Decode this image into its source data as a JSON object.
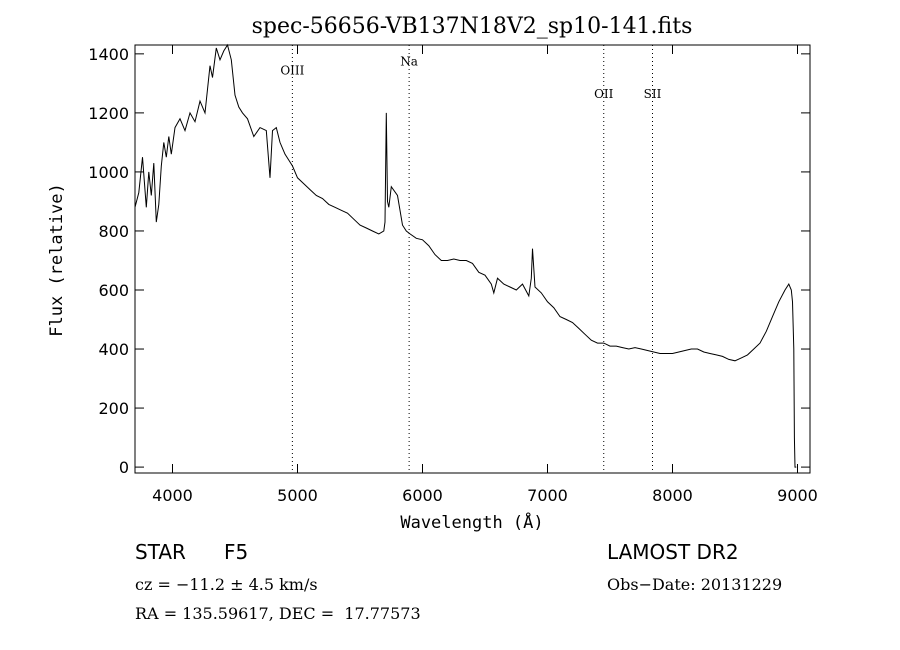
{
  "chart_data": {
    "type": "line",
    "title": "spec-56656-VB137N18V2_sp10-141.fits",
    "xlabel": "Wavelength (Å)",
    "ylabel": "Flux (relative)",
    "xlim": [
      3700,
      9100
    ],
    "ylim": [
      -20,
      1430
    ],
    "xticks": [
      4000,
      5000,
      6000,
      7000,
      8000,
      9000
    ],
    "yticks": [
      0,
      200,
      400,
      600,
      800,
      1000,
      1200,
      1400
    ],
    "grid": false,
    "line_color": "#000000",
    "emission_lines": [
      {
        "name": "OIII",
        "wavelength": 4959,
        "label_flux": 1330
      },
      {
        "name": "Na",
        "wavelength": 5893,
        "label_flux": 1360
      },
      {
        "name": "OII",
        "wavelength": 7450,
        "label_flux": 1250
      },
      {
        "name": "SII",
        "wavelength": 7840,
        "label_flux": 1250
      }
    ],
    "series": [
      {
        "x": [
          3700,
          3730,
          3760,
          3790,
          3810,
          3830,
          3850,
          3870,
          3890,
          3910,
          3930,
          3950,
          3970,
          3990,
          4020,
          4060,
          4100,
          4140,
          4180,
          4220,
          4260,
          4300,
          4320,
          4350,
          4380,
          4410,
          4440,
          4470,
          4500,
          4530,
          4560,
          4600,
          4650,
          4700,
          4750,
          4780,
          4800,
          4830,
          4860,
          4880,
          4900,
          4930,
          4960,
          5000,
          5050,
          5100,
          5150,
          5200,
          5250,
          5300,
          5350,
          5400,
          5450,
          5500,
          5550,
          5600,
          5650,
          5690,
          5700,
          5710,
          5720,
          5730,
          5750,
          5800,
          5840,
          5870,
          5900,
          5950,
          6000,
          6050,
          6100,
          6150,
          6200,
          6250,
          6300,
          6350,
          6400,
          6450,
          6500,
          6550,
          6570,
          6600,
          6650,
          6700,
          6750,
          6800,
          6850,
          6870,
          6880,
          6900,
          6950,
          7000,
          7050,
          7100,
          7150,
          7200,
          7250,
          7300,
          7350,
          7400,
          7450,
          7500,
          7550,
          7600,
          7650,
          7700,
          7750,
          7800,
          7850,
          7900,
          7950,
          8000,
          8050,
          8100,
          8150,
          8200,
          8250,
          8300,
          8350,
          8400,
          8450,
          8500,
          8550,
          8600,
          8650,
          8700,
          8750,
          8800,
          8850,
          8900,
          8930,
          8950,
          8960,
          8970,
          8975,
          8980,
          8985,
          8990
        ],
        "y": [
          880,
          930,
          1050,
          880,
          1000,
          920,
          1030,
          830,
          890,
          1020,
          1100,
          1050,
          1120,
          1060,
          1150,
          1180,
          1140,
          1200,
          1170,
          1240,
          1200,
          1360,
          1320,
          1420,
          1380,
          1410,
          1430,
          1380,
          1260,
          1220,
          1200,
          1180,
          1120,
          1150,
          1140,
          980,
          1140,
          1150,
          1100,
          1080,
          1060,
          1040,
          1020,
          980,
          960,
          940,
          920,
          910,
          890,
          880,
          870,
          860,
          840,
          820,
          810,
          800,
          790,
          800,
          830,
          1200,
          900,
          880,
          950,
          920,
          820,
          800,
          790,
          775,
          770,
          750,
          720,
          700,
          700,
          705,
          700,
          700,
          690,
          660,
          650,
          620,
          590,
          640,
          620,
          610,
          600,
          620,
          580,
          640,
          740,
          610,
          590,
          560,
          540,
          510,
          500,
          490,
          470,
          450,
          430,
          420,
          420,
          410,
          410,
          405,
          400,
          405,
          400,
          395,
          390,
          385,
          385,
          385,
          390,
          395,
          400,
          400,
          390,
          385,
          380,
          375,
          365,
          360,
          370,
          380,
          400,
          420,
          460,
          510,
          560,
          600,
          620,
          600,
          560,
          400,
          100,
          0,
          0,
          0
        ]
      }
    ]
  },
  "info": {
    "class": "STAR",
    "subclass": "F5",
    "survey": "LAMOST DR2",
    "redshift": "cz = −11.2 ± 4.5 km/s",
    "obs_date": "Obs−Date: 20131229",
    "coords": "RA = 135.59617, DEC =  17.77573"
  }
}
